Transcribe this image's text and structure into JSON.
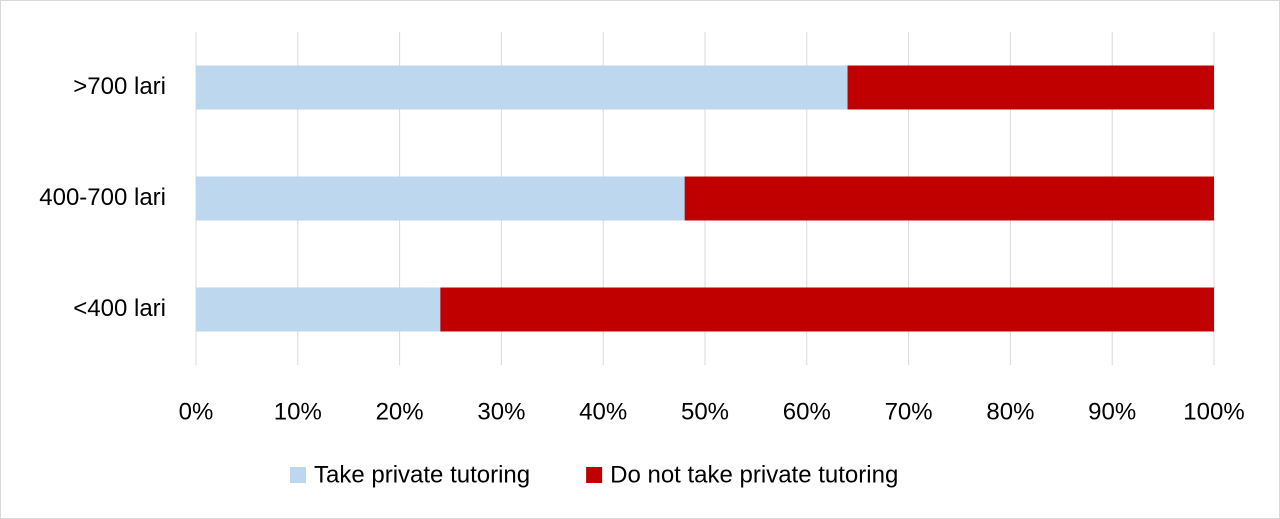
{
  "chart_data": {
    "type": "stacked-bar-horizontal",
    "categories": [
      ">700 lari",
      "400-700 lari",
      "<400 lari"
    ],
    "series": [
      {
        "name": "Take private tutoring",
        "color": "#bdd7ee",
        "values": [
          64,
          48,
          24
        ]
      },
      {
        "name": "Do not take private tutoring",
        "color": "#c00000",
        "values": [
          36,
          52,
          76
        ]
      }
    ],
    "xlim": [
      0,
      100
    ],
    "xticks": [
      {
        "value": 0,
        "label": "0%"
      },
      {
        "value": 10,
        "label": "10%"
      },
      {
        "value": 20,
        "label": "20%"
      },
      {
        "value": 30,
        "label": "30%"
      },
      {
        "value": 40,
        "label": "40%"
      },
      {
        "value": 50,
        "label": "50%"
      },
      {
        "value": 60,
        "label": "60%"
      },
      {
        "value": 70,
        "label": "70%"
      },
      {
        "value": 80,
        "label": "80%"
      },
      {
        "value": 90,
        "label": "90%"
      },
      {
        "value": 100,
        "label": "100%"
      }
    ],
    "grid": true,
    "legend": "bottom"
  }
}
